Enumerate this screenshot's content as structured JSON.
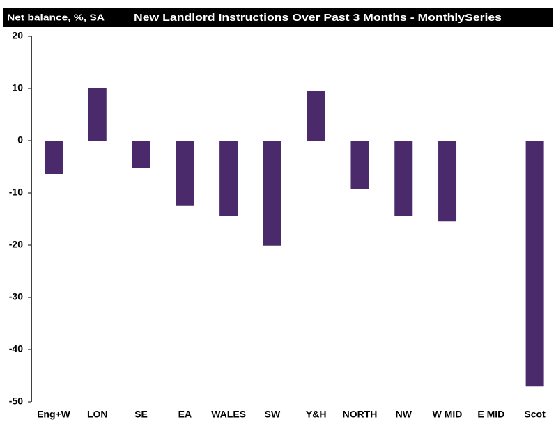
{
  "chart_data": {
    "type": "bar",
    "subtitle": "Net balance, %, SA",
    "title": "New Landlord Instructions Over Past 3 Months - MonthlySeries",
    "categories": [
      "Eng+W",
      "LON",
      "SE",
      "EA",
      "WALES",
      "SW",
      "Y&H",
      "NORTH",
      "NW",
      "W MID",
      "E MID",
      "Scot"
    ],
    "values": [
      -6.4,
      10,
      -5.2,
      -12.5,
      -14.4,
      -20.1,
      9.5,
      -9.2,
      -14.4,
      -15.5,
      0,
      -47.1
    ],
    "color": "#4b2a6b",
    "ylim": [
      -50,
      20
    ],
    "yticks": [
      -50,
      -40,
      -30,
      -20,
      -10,
      0,
      10,
      20
    ],
    "grid": false
  }
}
